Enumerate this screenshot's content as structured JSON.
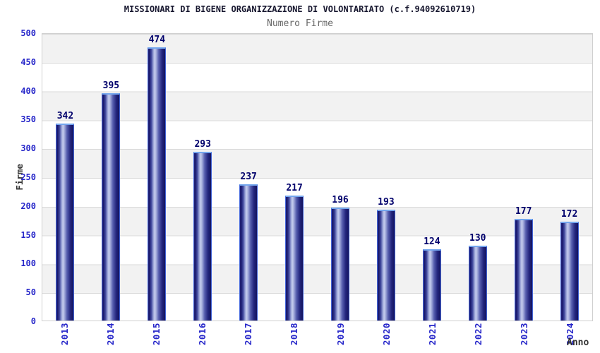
{
  "header": {
    "title": "MISSIONARI DI BIGENE ORGANIZZAZIONE DI VOLONTARIATO (c.f.94092610719)",
    "subtitle": "Numero Firme"
  },
  "colors": {
    "bar_navy": "#1b1b6e",
    "bar_highlight": "#c6cdee",
    "bar_border_blue": "#4466d8",
    "bar_cap_blue": "#74a6ee",
    "axis_label_blue": "#2626c9",
    "value_label_navy": "#00006b",
    "band_gray": "#f2f2f2",
    "gridline_gray": "#d9d9d9",
    "title_dark": "#16162e",
    "subtitle_gray": "#666666"
  },
  "chart_data": {
    "type": "bar",
    "title": "MISSIONARI DI BIGENE ORGANIZZAZIONE DI VOLONTARIATO (c.f.94092610719)",
    "subtitle": "Numero Firme",
    "categories": [
      "2013",
      "2014",
      "2015",
      "2016",
      "2017",
      "2018",
      "2019",
      "2020",
      "2021",
      "2022",
      "2023",
      "2024"
    ],
    "values": [
      342,
      395,
      474,
      293,
      237,
      217,
      196,
      193,
      124,
      130,
      177,
      172
    ],
    "xlabel": "Anno",
    "ylabel": "Firme",
    "ylim": [
      0,
      500
    ],
    "yticks": [
      0,
      50,
      100,
      150,
      200,
      250,
      300,
      350,
      400,
      450,
      500
    ],
    "grid": true,
    "banded_background": true,
    "legend_position": "none"
  }
}
